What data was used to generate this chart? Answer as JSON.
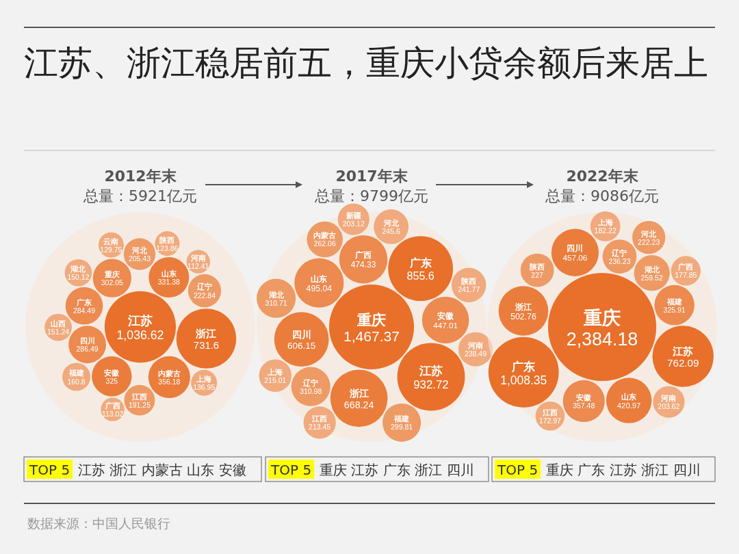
{
  "chart_data": [
    {
      "type": "other",
      "title": "2012年末",
      "subtitle": "总量：5921亿元",
      "categories": [
        "江苏",
        "浙江",
        "内蒙古",
        "山东",
        "安徽",
        "重庆",
        "四川",
        "广东",
        "辽宁",
        "河北",
        "江西",
        "福建",
        "山西",
        "湖北",
        "上海",
        "云南",
        "陕西",
        "广西",
        "河南"
      ],
      "values": [
        1036.62,
        731.6,
        356.18,
        331.38,
        325,
        302.05,
        286.49,
        284.49,
        222.84,
        205.43,
        191.25,
        160.8,
        151.24,
        150.12,
        136.95,
        129.75,
        123.86,
        113.02,
        112.41
      ],
      "value_labels": [
        "1,036.62",
        "731.6",
        "356.18",
        "331.38",
        "325",
        "302.05",
        "286.49",
        "284.49",
        "222.84",
        "205.43",
        "191.25",
        "160.8",
        "151.24",
        "150.12",
        "136.95",
        "129.75",
        "123.86",
        "113.02",
        "112.41"
      ],
      "colors": [
        "#e8702a",
        "#e8702a",
        "#ea7d3c",
        "#ea7d3c",
        "#ea7d3c",
        "#ec8a4f",
        "#ec8a4f",
        "#ec8a4f",
        "#ee9a65",
        "#ee9a65",
        "#ee9a65",
        "#f0aa7d",
        "#f0aa7d",
        "#f0aa7d",
        "#f0aa7d",
        "#f0aa7d",
        "#f0aa7d",
        "#f0aa7d",
        "#f0aa7d"
      ],
      "annotations": [
        "TOP 5",
        "江苏 浙江 内蒙古 山东 安徽",
        "江苏、浙江稳居前五，重庆小贷余额后来居上",
        "数据来源：中国人民银行"
      ]
    },
    {
      "type": "other",
      "title": "2017年末",
      "subtitle": "总量：9799亿元",
      "categories": [
        "重庆",
        "江苏",
        "广东",
        "浙江",
        "四川",
        "山东",
        "广西",
        "安徽",
        "辽宁",
        "湖北",
        "福建",
        "内蒙古",
        "河北",
        "陕西",
        "河南",
        "上海",
        "江西",
        "新疆"
      ],
      "values": [
        1467.37,
        932.72,
        855.6,
        668.24,
        606.15,
        495.04,
        474.33,
        447.01,
        310.98,
        310.71,
        299.81,
        262.06,
        245.6,
        241.77,
        238.49,
        215.01,
        213.45,
        203.12
      ],
      "value_labels": [
        "1,467.37",
        "932.72",
        "855.6",
        "668.24",
        "606.15",
        "495.04",
        "474.33",
        "447.01",
        "310.98",
        "310.71",
        "299.81",
        "262.06",
        "245.6",
        "241.77",
        "238.49",
        "215.01",
        "213.45",
        "203.12"
      ],
      "colors": [
        "#e8702a",
        "#e8702a",
        "#e8702a",
        "#ea7d3c",
        "#ea7d3c",
        "#ec8a4f",
        "#ec8a4f",
        "#ec8a4f",
        "#ee9a65",
        "#ee9a65",
        "#ee9a65",
        "#ee9a65",
        "#f0aa7d",
        "#f0aa7d",
        "#f0aa7d",
        "#f0aa7d",
        "#f0aa7d",
        "#f0aa7d"
      ],
      "annotations": [
        "TOP 5",
        "重庆 江苏 广东 浙江 四川"
      ]
    },
    {
      "type": "other",
      "title": "2022年末",
      "subtitle": "总量：9086亿元",
      "categories": [
        "重庆",
        "广东",
        "江苏",
        "浙江",
        "四川",
        "山东",
        "安徽",
        "福建",
        "湖北",
        "辽宁",
        "陕西",
        "河北",
        "河南",
        "上海",
        "广西",
        "江西"
      ],
      "values": [
        2384.18,
        1008.35,
        762.09,
        502.76,
        457.06,
        420.97,
        357.48,
        325.91,
        259.52,
        236.23,
        227,
        222.23,
        203.62,
        182.22,
        177.85,
        172.97
      ],
      "value_labels": [
        "2,384.18",
        "1,008.35",
        "762.09",
        "502.76",
        "457.06",
        "420.97",
        "357.48",
        "325.91",
        "259.52",
        "236.23",
        "227",
        "222.23",
        "203.62",
        "182.22",
        "177.85",
        "172.97"
      ],
      "colors": [
        "#e8702a",
        "#e8702a",
        "#e8702a",
        "#ea7d3c",
        "#ea7d3c",
        "#ea7d3c",
        "#ec8a4f",
        "#ec8a4f",
        "#ee9a65",
        "#ee9a65",
        "#ee9a65",
        "#ee9a65",
        "#f0aa7d",
        "#f0aa7d",
        "#f0aa7d",
        "#f0aa7d"
      ],
      "annotations": [
        "TOP 5",
        "重庆 广东 江苏 浙江 四川"
      ]
    }
  ]
}
